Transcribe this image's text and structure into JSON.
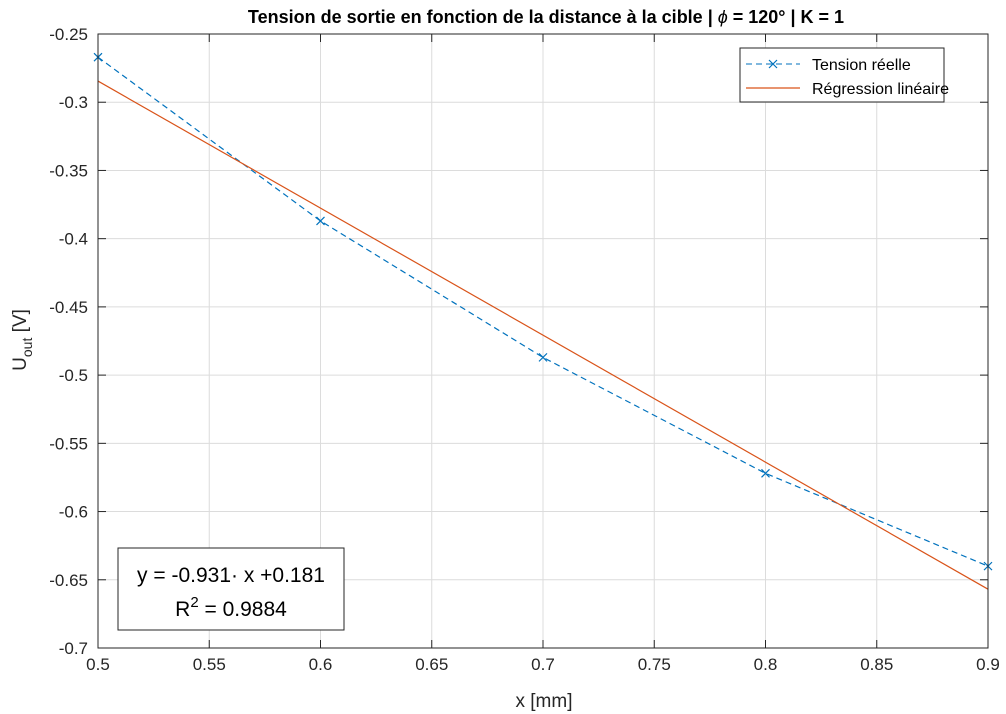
{
  "chart_data": {
    "type": "line",
    "title_parts": [
      "Tension de sortie en fonction de la distance à la cible | ",
      "ϕ",
      " = 120° | K = 1"
    ],
    "xlabel": "x [mm]",
    "ylabel": {
      "main": "U",
      "subscript": "out",
      "unit": " [V]"
    },
    "xlim": [
      0.5,
      0.9
    ],
    "ylim": [
      -0.7,
      -0.25
    ],
    "x_ticks": [
      0.5,
      0.55,
      0.6,
      0.65,
      0.7,
      0.75,
      0.8,
      0.85,
      0.9
    ],
    "x_tick_labels": [
      "0.5",
      "0.55",
      "0.6",
      "0.65",
      "0.7",
      "0.75",
      "0.8",
      "0.85",
      "0.9"
    ],
    "y_ticks": [
      -0.25,
      -0.3,
      -0.35,
      -0.4,
      -0.45,
      -0.5,
      -0.55,
      -0.6,
      -0.65,
      -0.7
    ],
    "y_tick_labels": [
      "-0.25",
      "-0.3",
      "-0.35",
      "-0.4",
      "-0.45",
      "-0.5",
      "-0.55",
      "-0.6",
      "-0.65",
      "-0.7"
    ],
    "grid": true,
    "legend_position": "top-right",
    "series": [
      {
        "name": "Tension réelle",
        "style": "dashed",
        "marker": "x",
        "color": "#0072BD",
        "x": [
          0.5,
          0.6,
          0.7,
          0.8,
          0.9
        ],
        "y": [
          -0.267,
          -0.387,
          -0.487,
          -0.572,
          -0.64
        ]
      },
      {
        "name": "Régression linéaire",
        "style": "solid",
        "marker": "none",
        "color": "#D95319",
        "x": [
          0.5,
          0.9
        ],
        "y": [
          -0.2845,
          -0.6569
        ]
      }
    ],
    "annotation": {
      "equation": "y = -0.931· x +0.181",
      "r2_label": "R",
      "r2_exponent": "2",
      "r2_value": " = 0.9884",
      "position": "bottom-left"
    }
  }
}
